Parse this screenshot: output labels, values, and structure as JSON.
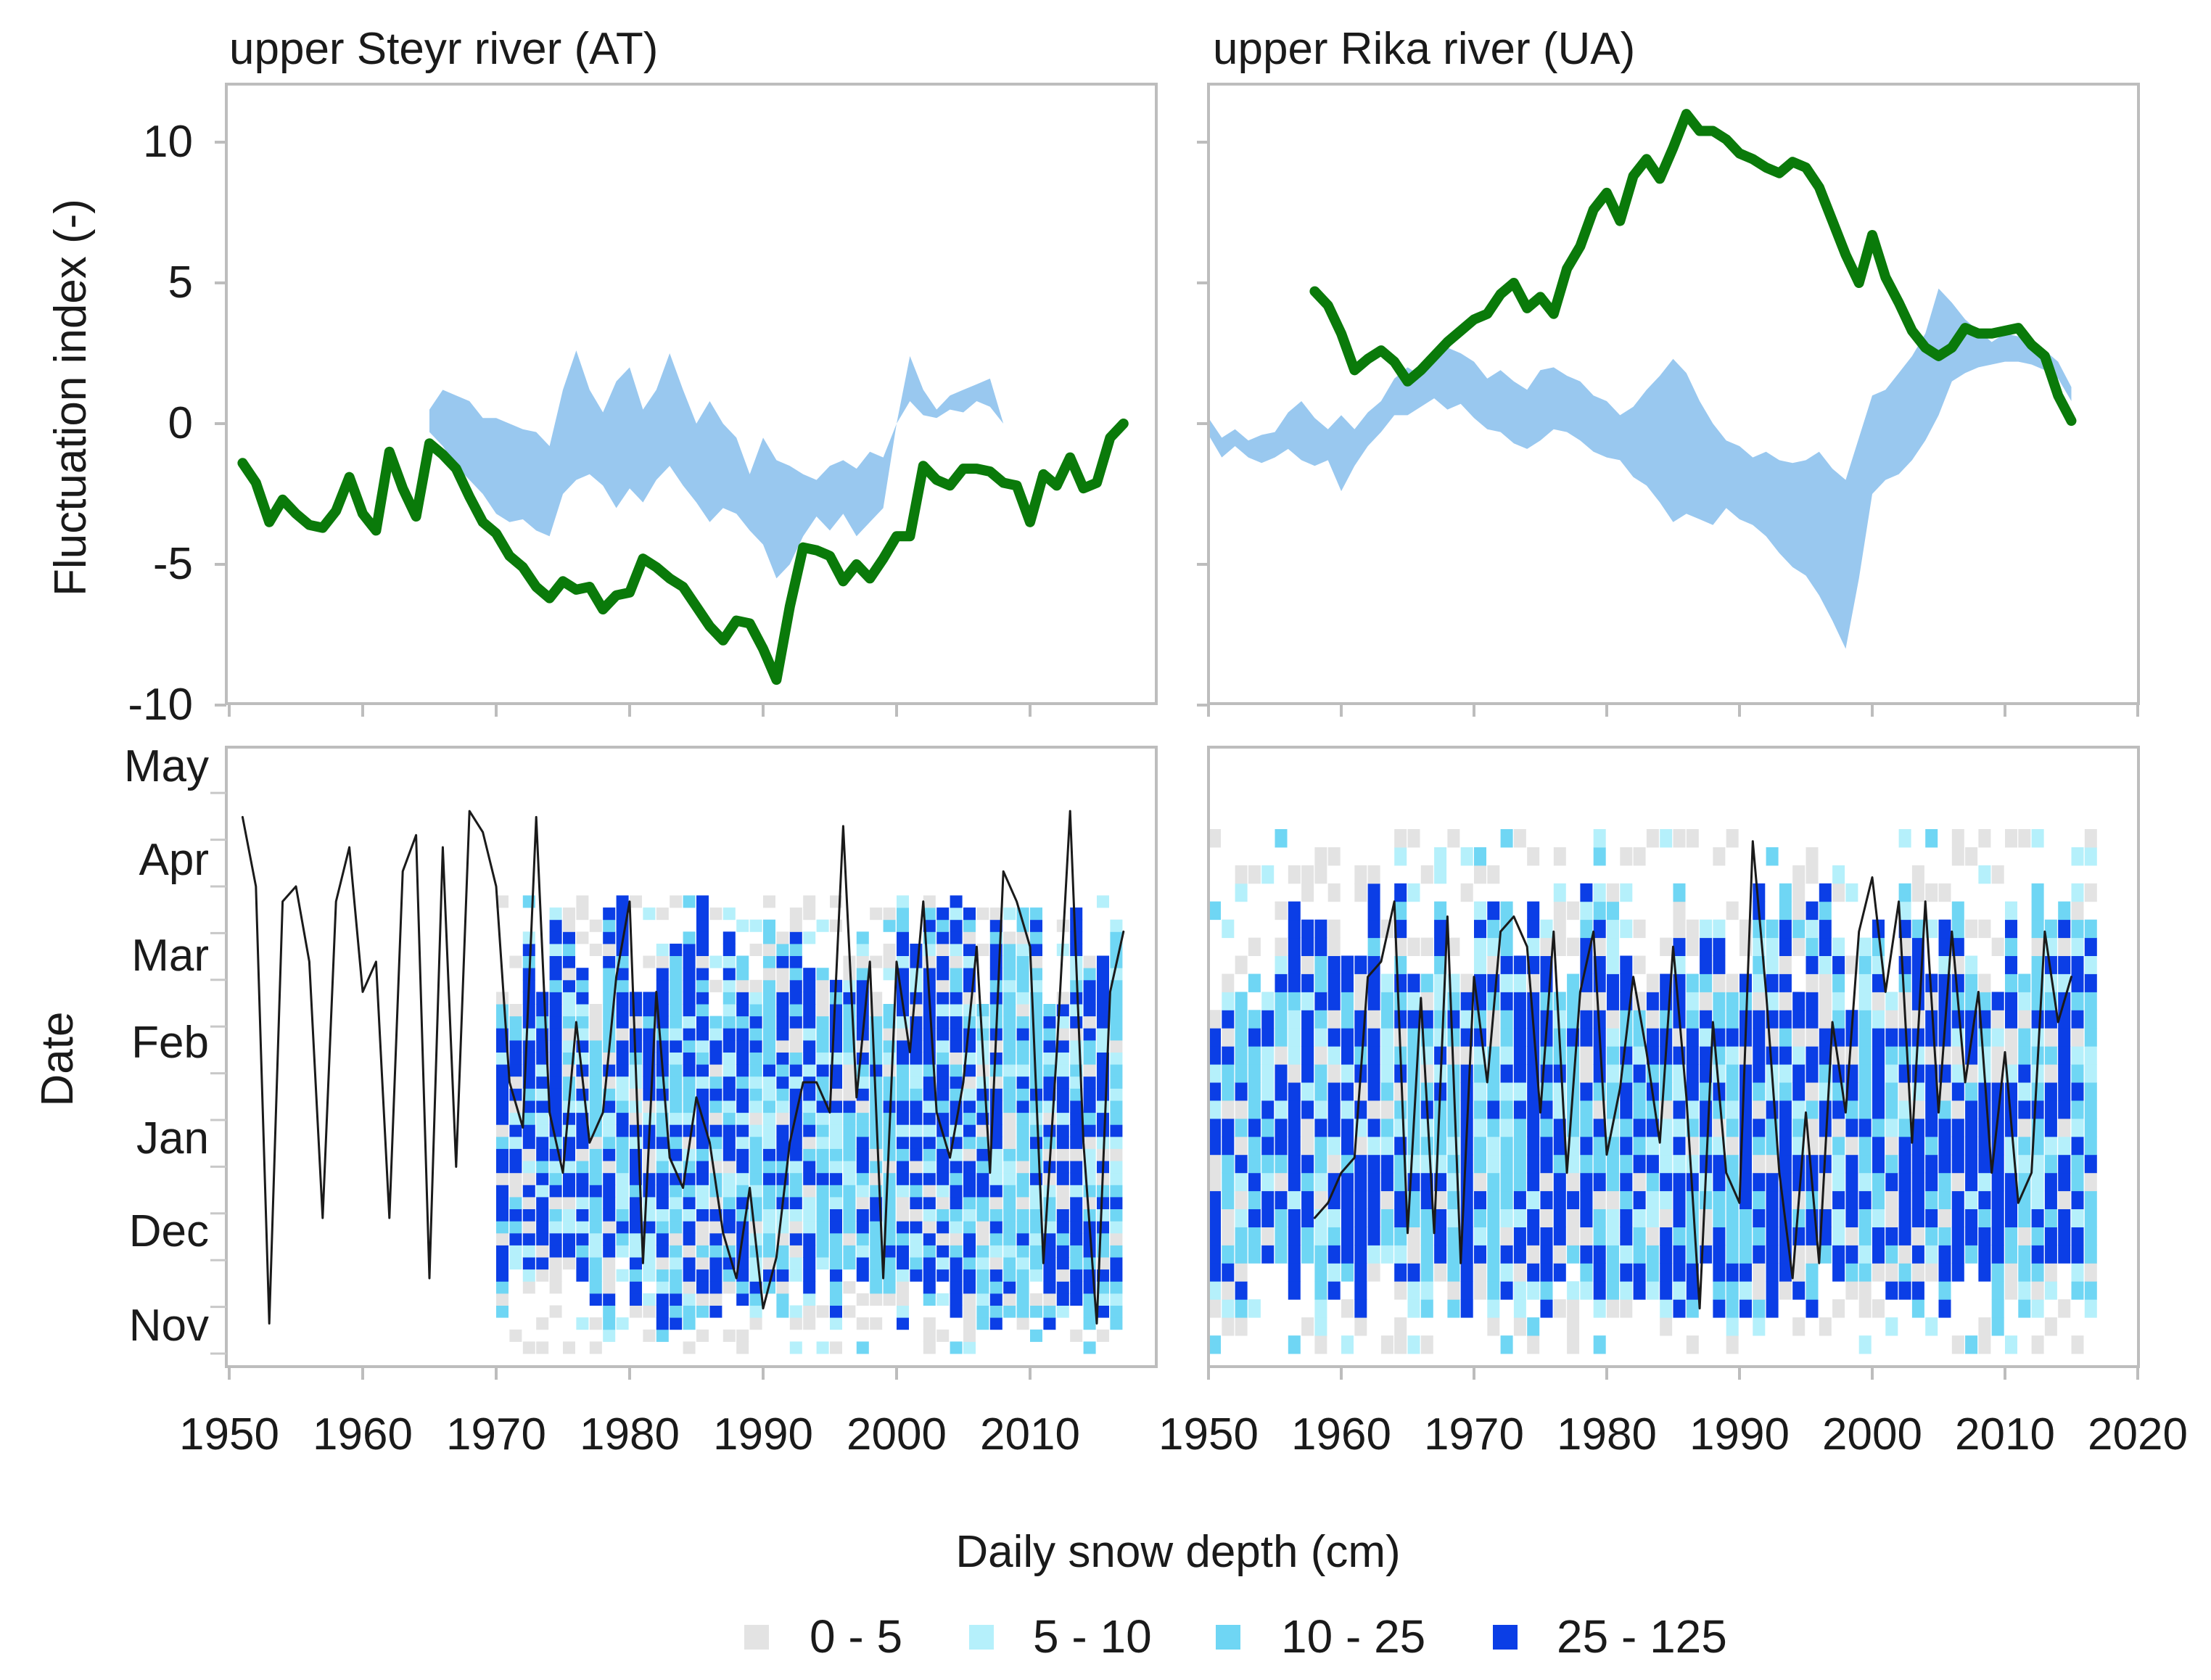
{
  "colors": {
    "fluctuation": "#0a7a0a",
    "band": "#99c8ef",
    "snowline": "#1a1a1a",
    "bin_0_5": "#e3e3e3",
    "bin_5_10": "#b5f0fb",
    "bin_10_25": "#6fd6f4",
    "bin_25_125": "#0b3ee6"
  },
  "legend": {
    "title": "Daily snow depth (cm)",
    "items": [
      {
        "label": "0 - 5",
        "color": "#e3e3e3"
      },
      {
        "label": "5 - 10",
        "color": "#b5f0fb"
      },
      {
        "label": "10 - 25",
        "color": "#6fd6f4"
      },
      {
        "label": "25 - 125",
        "color": "#0b3ee6"
      }
    ]
  },
  "chart_data": [
    {
      "type": "line",
      "panel": "top-left",
      "title": "upper Steyr river (AT)",
      "ylabel": "Fluctuation index (-)",
      "xlabel": "",
      "xlim": [
        1950,
        2019
      ],
      "ylim": [
        -10,
        12
      ],
      "yticks": [
        10,
        5,
        0,
        -5,
        -10
      ],
      "series": [
        {
          "name": "Fluctuation index",
          "style": "thick-green-line",
          "x": [
            1951,
            1952,
            1953,
            1954,
            1955,
            1956,
            1957,
            1958,
            1959,
            1960,
            1961,
            1962,
            1963,
            1964,
            1965,
            1966,
            1967,
            1968,
            1969,
            1970,
            1971,
            1972,
            1973,
            1974,
            1975,
            1976,
            1977,
            1978,
            1979,
            1980,
            1981,
            1982,
            1983,
            1984,
            1985,
            1986,
            1987,
            1988,
            1989,
            1990,
            1991,
            1992,
            1993,
            1994,
            1995,
            1996,
            1997,
            1998,
            1999,
            2000,
            2001,
            2002,
            2003,
            2004,
            2005,
            2006,
            2007,
            2008,
            2009,
            2010,
            2011,
            2012,
            2013,
            2014,
            2015,
            2016,
            2017
          ],
          "y": [
            -1.4,
            -2.1,
            -3.5,
            -2.7,
            -3.2,
            -3.6,
            -3.7,
            -3.1,
            -1.9,
            -3.2,
            -3.8,
            -1,
            -2.3,
            -3.3,
            -0.7,
            -1.1,
            -1.6,
            -2.6,
            -3.5,
            -3.9,
            -4.7,
            -5.1,
            -5.8,
            -6.2,
            -5.6,
            -5.9,
            -5.8,
            -6.6,
            -6.1,
            -6,
            -4.8,
            -5.1,
            -5.5,
            -5.8,
            -6.5,
            -7.2,
            -7.7,
            -7,
            -7.1,
            -8,
            -9.1,
            -6.5,
            -4.4,
            -4.5,
            -4.7,
            -5.6,
            -5,
            -5.5,
            -4.8,
            -4,
            -4,
            -1.5,
            -2,
            -2.2,
            -1.6,
            -1.6,
            -1.7,
            -2.1,
            -2.2,
            -3.5,
            -1.8,
            -2.2,
            -1.2,
            -2.3,
            -2.1,
            -0.5,
            0
          ]
        },
        {
          "name": "Range band",
          "style": "light-blue-band",
          "x": [
            1965,
            1966,
            1967,
            1968,
            1969,
            1970,
            1971,
            1972,
            1973,
            1974,
            1975,
            1976,
            1977,
            1978,
            1979,
            1980,
            1981,
            1982,
            1983,
            1984,
            1985,
            1986,
            1987,
            1988,
            1989,
            1990,
            1991,
            1992,
            1993,
            1994,
            1995,
            1996,
            1997,
            1998,
            1999,
            2000,
            2001,
            2002,
            2003,
            2004,
            2005,
            2006,
            2007,
            2008
          ],
          "upper": [
            0.5,
            1.2,
            1.0,
            0.8,
            0.2,
            0.2,
            0,
            -0.2,
            -0.3,
            -0.8,
            1.2,
            2.6,
            1.2,
            0.4,
            1.5,
            2.0,
            0.5,
            1.2,
            2.5,
            1.2,
            0,
            0.8,
            0,
            -0.5,
            -1.8,
            -0.5,
            -1.3,
            -1.5,
            -1.8,
            -2.0,
            -1.5,
            -1.3,
            -1.6,
            -1.0,
            -1.2,
            0.0,
            2.4,
            1.2,
            0.5,
            1.0,
            1.2,
            1.4,
            1.6,
            0.0
          ],
          "lower": [
            -0.3,
            -0.8,
            -1.5,
            -2.0,
            -2.5,
            -3.2,
            -3.5,
            -3.4,
            -3.8,
            -4.0,
            -2.5,
            -2.0,
            -1.8,
            -2.2,
            -3.0,
            -2.3,
            -2.8,
            -2.0,
            -1.5,
            -2.2,
            -2.8,
            -3.5,
            -3.0,
            -3.2,
            -3.8,
            -4.3,
            -5.5,
            -5.0,
            -4.0,
            -3.3,
            -3.8,
            -3.2,
            -4.0,
            -3.5,
            -3.0,
            0.0,
            0.8,
            0.3,
            0.2,
            0.5,
            0.4,
            0.8,
            0.6,
            0.0
          ]
        }
      ]
    },
    {
      "type": "line",
      "panel": "top-right",
      "title": "upper Rika river (UA)",
      "xlim": [
        1950,
        2020
      ],
      "ylim": [
        -10,
        12
      ],
      "series": [
        {
          "name": "Fluctuation index",
          "style": "thick-green-line",
          "x": [
            1958,
            1959,
            1960,
            1961,
            1962,
            1963,
            1964,
            1965,
            1966,
            1967,
            1968,
            1969,
            1970,
            1971,
            1972,
            1973,
            1974,
            1975,
            1976,
            1977,
            1978,
            1979,
            1980,
            1981,
            1982,
            1983,
            1984,
            1985,
            1986,
            1987,
            1988,
            1989,
            1990,
            1991,
            1992,
            1993,
            1994,
            1995,
            1996,
            1997,
            1998,
            1999,
            2000,
            2001,
            2002,
            2003,
            2004,
            2005,
            2006,
            2007,
            2008,
            2009,
            2010,
            2011,
            2012,
            2013,
            2014,
            2015
          ],
          "y": [
            4.7,
            4.2,
            3.2,
            1.9,
            2.3,
            2.6,
            2.2,
            1.5,
            1.9,
            2.4,
            2.9,
            3.3,
            3.7,
            3.9,
            4.6,
            5.0,
            4.1,
            4.5,
            3.9,
            5.5,
            6.3,
            7.6,
            8.2,
            7.2,
            8.8,
            9.4,
            8.7,
            9.8,
            11,
            10.4,
            10.4,
            10.1,
            9.6,
            9.4,
            9.1,
            8.9,
            9.3,
            9.1,
            8.4,
            7.2,
            6.0,
            5.0,
            6.7,
            5.2,
            4.3,
            3.3,
            2.7,
            2.4,
            2.7,
            3.4,
            3.2,
            3.2,
            3.3,
            3.4,
            2.8,
            2.4,
            1.0,
            0.1
          ]
        },
        {
          "name": "Range band",
          "style": "light-blue-band",
          "x": [
            1950,
            1951,
            1952,
            1953,
            1954,
            1955,
            1956,
            1957,
            1958,
            1959,
            1960,
            1961,
            1962,
            1963,
            1964,
            1965,
            1966,
            1967,
            1968,
            1969,
            1970,
            1971,
            1972,
            1973,
            1974,
            1975,
            1976,
            1977,
            1978,
            1979,
            1980,
            1981,
            1982,
            1983,
            1984,
            1985,
            1986,
            1987,
            1988,
            1989,
            1990,
            1991,
            1992,
            1993,
            1994,
            1995,
            1996,
            1997,
            1998,
            1999,
            2000,
            2001,
            2002,
            2003,
            2004,
            2005,
            2006,
            2007,
            2008,
            2009,
            2010,
            2011,
            2012,
            2013,
            2014,
            2015
          ],
          "upper": [
            0.2,
            -0.5,
            -0.2,
            -0.6,
            -0.4,
            -0.3,
            0.4,
            0.8,
            0.2,
            -0.2,
            0.3,
            -0.2,
            0.4,
            0.8,
            1.6,
            2.0,
            1.7,
            2.4,
            2.7,
            2.5,
            2.2,
            1.6,
            1.9,
            1.5,
            1.2,
            1.9,
            2.0,
            1.7,
            1.5,
            1.0,
            0.8,
            0.3,
            0.6,
            1.2,
            1.7,
            2.3,
            1.8,
            0.8,
            0.0,
            -0.6,
            -0.8,
            -1.2,
            -1.0,
            -1.3,
            -1.4,
            -1.3,
            -1.0,
            -1.6,
            -2.0,
            -0.5,
            1.0,
            1.2,
            1.8,
            2.4,
            3.2,
            4.8,
            4.3,
            3.7,
            3.3,
            2.9,
            3.2,
            3.1,
            2.8,
            2.6,
            2.2,
            1.3
          ],
          "lower": [
            -0.4,
            -1.2,
            -0.8,
            -1.2,
            -1.4,
            -1.2,
            -0.9,
            -1.3,
            -1.5,
            -1.3,
            -2.4,
            -1.5,
            -0.8,
            -0.3,
            0.3,
            0.3,
            0.6,
            0.9,
            0.5,
            0.7,
            0.2,
            -0.2,
            -0.3,
            -0.7,
            -0.9,
            -0.6,
            -0.2,
            -0.3,
            -0.6,
            -1.0,
            -1.2,
            -1.3,
            -1.9,
            -2.2,
            -2.8,
            -3.5,
            -3.2,
            -3.4,
            -3.6,
            -3.0,
            -3.4,
            -3.6,
            -4.0,
            -4.6,
            -5.1,
            -5.4,
            -6.1,
            -7.0,
            -8.0,
            -5.5,
            -2.5,
            -2.0,
            -1.8,
            -1.3,
            -0.6,
            0.3,
            1.5,
            1.8,
            2.0,
            2.1,
            2.2,
            2.2,
            2.1,
            1.9,
            1.6,
            0.8
          ]
        }
      ]
    },
    {
      "type": "heatmap",
      "panel": "bottom-left",
      "title": "upper Steyr river (AT)",
      "ylabel": "Date",
      "xlabel": "",
      "xlim": [
        1950,
        2019
      ],
      "xticks": [
        1950,
        1960,
        1970,
        1980,
        1990,
        2000,
        2010
      ],
      "ylim": [
        0,
        200
      ],
      "yticks": [
        "May",
        "Apr",
        "Mar",
        "Feb",
        "Jan",
        "Dec",
        "Nov"
      ],
      "ytick_days": [
        197,
        167,
        136,
        108,
        77,
        46,
        16
      ],
      "bins": [
        "0 - 5",
        "5 - 10",
        "10 - 25",
        "25 - 125"
      ],
      "cells": {
        "year_start": 1970,
        "year_end": 2017,
        "x_step_years": 1,
        "day_step": 4,
        "note": "daily snow depth class per year and day since 1 Nov (sampled every 4 days)"
      },
      "series": [
        {
          "name": "Snow cover extent",
          "style": "thin-black-line",
          "x": [
            1951,
            1952,
            1953,
            1954,
            1955,
            1956,
            1957,
            1958,
            1959,
            1960,
            1961,
            1962,
            1963,
            1964,
            1965,
            1966,
            1967,
            1968,
            1969,
            1970,
            1971,
            1972,
            1973,
            1974,
            1975,
            1976,
            1977,
            1978,
            1979,
            1980,
            1981,
            1982,
            1983,
            1984,
            1985,
            1986,
            1987,
            1988,
            1989,
            1990,
            1991,
            1992,
            1993,
            1994,
            1995,
            1996,
            1997,
            1998,
            1999,
            2000,
            2001,
            2002,
            2003,
            2004,
            2005,
            2006,
            2007,
            2008,
            2009,
            2010,
            2011,
            2012,
            2013,
            2014,
            2015,
            2016,
            2017
          ],
          "y": [
            178,
            155,
            10,
            150,
            155,
            130,
            45,
            150,
            168,
            120,
            130,
            45,
            160,
            172,
            25,
            168,
            62,
            180,
            173,
            155,
            90,
            75,
            178,
            80,
            60,
            110,
            70,
            80,
            125,
            150,
            30,
            120,
            65,
            55,
            85,
            70,
            40,
            25,
            55,
            15,
            32,
            70,
            90,
            90,
            80,
            175,
            85,
            130,
            25,
            130,
            100,
            150,
            80,
            65,
            90,
            135,
            60,
            160,
            150,
            135,
            30,
            100,
            180,
            70,
            10,
            120,
            140
          ]
        }
      ]
    },
    {
      "type": "heatmap",
      "panel": "bottom-right",
      "title": "upper Rika river (UA)",
      "xlim": [
        1950,
        2020
      ],
      "xticks": [
        1950,
        1960,
        1970,
        1980,
        1990,
        2000,
        2010,
        2020
      ],
      "ylim": [
        0,
        200
      ],
      "bins": [
        "0 - 5",
        "5 - 10",
        "10 - 25",
        "25 - 125"
      ],
      "cells": {
        "year_start": 1950,
        "year_end": 2016,
        "x_step_years": 1,
        "day_step": 7,
        "note": "daily snow depth class per year and day since 1 Nov (sampled every 7 days)"
      },
      "series": [
        {
          "name": "Snow cover extent",
          "style": "thin-black-line",
          "x": [
            1958,
            1959,
            1960,
            1961,
            1962,
            1963,
            1964,
            1965,
            1966,
            1967,
            1968,
            1969,
            1970,
            1971,
            1972,
            1973,
            1974,
            1975,
            1976,
            1977,
            1978,
            1979,
            1980,
            1981,
            1982,
            1983,
            1984,
            1985,
            1986,
            1987,
            1988,
            1989,
            1990,
            1991,
            1992,
            1993,
            1994,
            1995,
            1996,
            1997,
            1998,
            1999,
            2000,
            2001,
            2002,
            2003,
            2004,
            2005,
            2006,
            2007,
            2008,
            2009,
            2010,
            2011,
            2012,
            2013,
            2014,
            2015
          ],
          "y": [
            45,
            50,
            60,
            65,
            125,
            130,
            150,
            40,
            118,
            40,
            145,
            30,
            125,
            90,
            140,
            145,
            135,
            80,
            140,
            60,
            120,
            140,
            66,
            88,
            125,
            100,
            70,
            135,
            85,
            15,
            110,
            60,
            50,
            170,
            120,
            60,
            25,
            80,
            30,
            110,
            80,
            140,
            158,
            120,
            150,
            70,
            150,
            80,
            140,
            90,
            120,
            60,
            100,
            50,
            60,
            140,
            110,
            125
          ]
        }
      ]
    }
  ],
  "axes": {
    "top_left_yticks": [
      "10",
      "5",
      "0",
      "-5",
      "-10"
    ],
    "bottom_left_yticks": [
      "May",
      "Apr",
      "Mar",
      "Feb",
      "Jan",
      "Dec",
      "Nov"
    ],
    "left_xticks": [
      "1950",
      "1960",
      "1970",
      "1980",
      "1990",
      "2000",
      "2010"
    ],
    "right_xticks": [
      "1950",
      "1960",
      "1970",
      "1980",
      "1990",
      "2000",
      "2010",
      "2020"
    ],
    "fluct_ylabel": "Fluctuation index (-)",
    "date_ylabel": "Date"
  },
  "titles": {
    "left": "upper Steyr river (AT)",
    "right": "upper Rika river (UA)"
  }
}
